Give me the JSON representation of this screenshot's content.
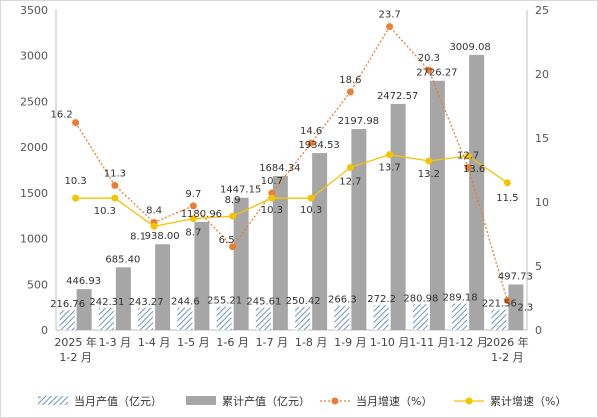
{
  "chart_data": {
    "type": "bar",
    "categories": [
      [
        "2025 年",
        "1-2 月"
      ],
      [
        "1-3 月"
      ],
      [
        "1-4 月"
      ],
      [
        "1-5 月"
      ],
      [
        "1-6 月"
      ],
      [
        "1-7 月"
      ],
      [
        "1-8 月"
      ],
      [
        "1-9 月"
      ],
      [
        "1-10 月"
      ],
      [
        "1-11 月"
      ],
      [
        "1-12 月"
      ],
      [
        "2026 年",
        "1-2 月"
      ]
    ],
    "series": [
      {
        "name": "当月产值（亿元）",
        "kind": "bar",
        "axis": "left",
        "color": "#4a7ab8",
        "values": [
          216.76,
          242.31,
          243.27,
          244.6,
          255.21,
          245.61,
          250.42,
          266.3,
          272.2,
          280.98,
          289.18,
          221.56
        ],
        "labels": [
          "216.76",
          "242.31",
          "243.27",
          "244.6",
          "255.21",
          "245.61",
          "250.42",
          "266.3",
          "272.2",
          "280.98",
          "289.18",
          "221.56"
        ]
      },
      {
        "name": "累计产值（亿元）",
        "kind": "bar",
        "axis": "left",
        "color": "#a6a6a6",
        "values": [
          446.93,
          685.4,
          938.0,
          1180.96,
          1447.15,
          1684.34,
          1934.53,
          2197.98,
          2472.57,
          2726.27,
          3009.08,
          497.73
        ],
        "labels": [
          "446.93",
          "685.40",
          "938.00",
          "1180.96",
          "1447.15",
          "1684.34",
          "1934.53",
          "2197.98",
          "2472.57",
          "2726.27",
          "3009.08",
          "497.73"
        ]
      },
      {
        "name": "当月增速（%）",
        "kind": "line",
        "axis": "right",
        "color": "#ed7d31",
        "values": [
          16.2,
          11.3,
          8.4,
          9.7,
          6.5,
          10.7,
          14.6,
          18.6,
          23.7,
          20.3,
          12.7,
          2.3
        ],
        "labels": [
          "16.2",
          "11.3",
          "8.4",
          "9.7",
          "6.5",
          "10.7",
          "14.6",
          "18.6",
          "23.7",
          "20.3",
          "12.7",
          "2.3"
        ]
      },
      {
        "name": "累计增速（%）",
        "kind": "line",
        "axis": "right",
        "color": "#f5c400",
        "values": [
          10.3,
          10.3,
          8.1,
          8.7,
          8.9,
          10.3,
          10.3,
          12.7,
          13.7,
          13.2,
          13.6,
          11.5
        ],
        "labels": [
          "10.3",
          "10.3",
          "8.1",
          "8.7",
          "8.9",
          "10.3",
          "10.3",
          "12.7",
          "13.7",
          "13.2",
          "13.6",
          "11.5"
        ]
      }
    ],
    "y_left": {
      "min": 0,
      "max": 3500,
      "step": 500,
      "ticks": [
        "0",
        "500",
        "1000",
        "1500",
        "2000",
        "2500",
        "3000",
        "3500"
      ]
    },
    "y_right": {
      "min": 0,
      "max": 25,
      "step": 5,
      "ticks": [
        "0",
        "5",
        "10",
        "15",
        "20",
        "25"
      ]
    },
    "grid": false,
    "legend": "bottom"
  }
}
